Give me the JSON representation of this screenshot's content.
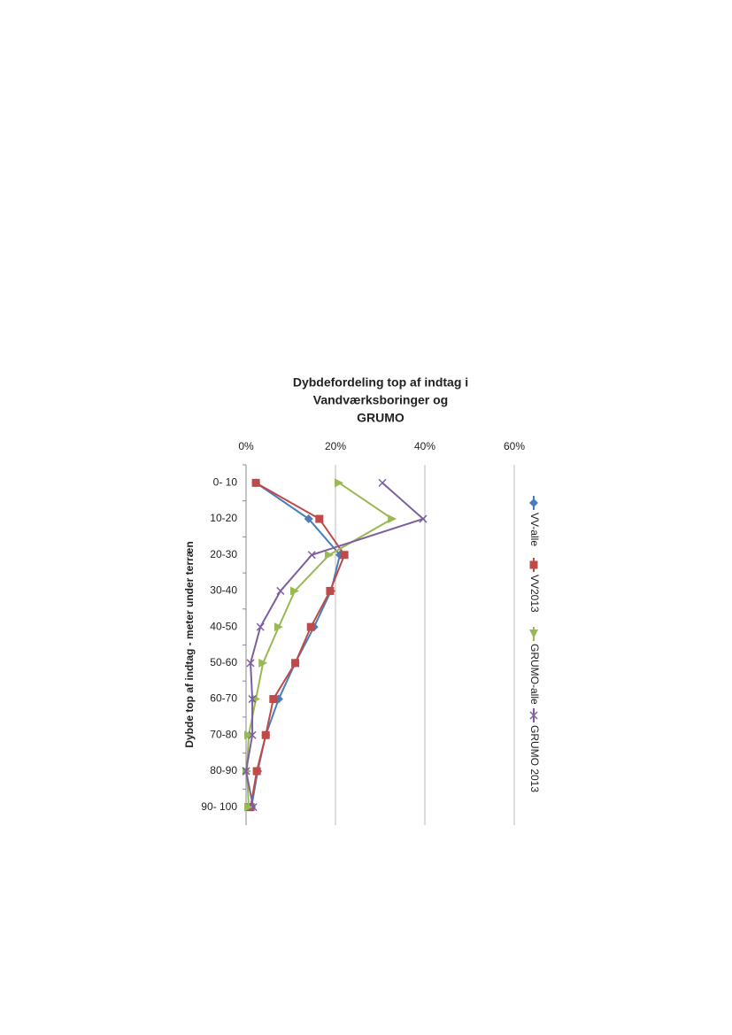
{
  "chart_data": {
    "type": "line",
    "title": [
      "Dybdefordeling top af indtag i",
      "Vandværksboringer og",
      "GRUMO"
    ],
    "y_label": "Dybde top af indtag - meter under terræn",
    "categories": [
      "0- 10",
      "10-20",
      "20-30",
      "30-40",
      "40-50",
      "50-60",
      "60-70",
      "70-80",
      "80-90",
      "90- 100"
    ],
    "series": [
      {
        "name": "VV-alle",
        "color": "#4a7ebb",
        "marker": "diamond",
        "values": [
          2.2,
          14,
          21,
          19,
          15.2,
          11,
          7.3,
          4.4,
          2.6,
          1.2
        ]
      },
      {
        "name": "VV2013",
        "color": "#be4b48",
        "marker": "square",
        "values": [
          2.2,
          16.4,
          22,
          18.8,
          14.5,
          11,
          6.1,
          4.4,
          2.4,
          1
        ]
      },
      {
        "name": "GRUMO-alle",
        "color": "#98b954",
        "marker": "triangle",
        "values": [
          20.8,
          32.7,
          18.6,
          10.9,
          7.3,
          3.8,
          2.2,
          0.6,
          0.2,
          0.6
        ]
      },
      {
        "name": "GRUMO 2013",
        "color": "#7d5fa0",
        "marker": "x",
        "values": [
          30.5,
          39.6,
          14.7,
          7.7,
          3.2,
          1,
          1.4,
          1.4,
          0,
          1.6
        ]
      }
    ],
    "xlim": [
      0,
      60
    ],
    "xticks": [
      {
        "value": 0,
        "label": "0%"
      },
      {
        "value": 20,
        "label": "20%"
      },
      {
        "value": 40,
        "label": "40%"
      },
      {
        "value": 60,
        "label": "60%"
      }
    ],
    "grid": true,
    "legend": "right"
  }
}
